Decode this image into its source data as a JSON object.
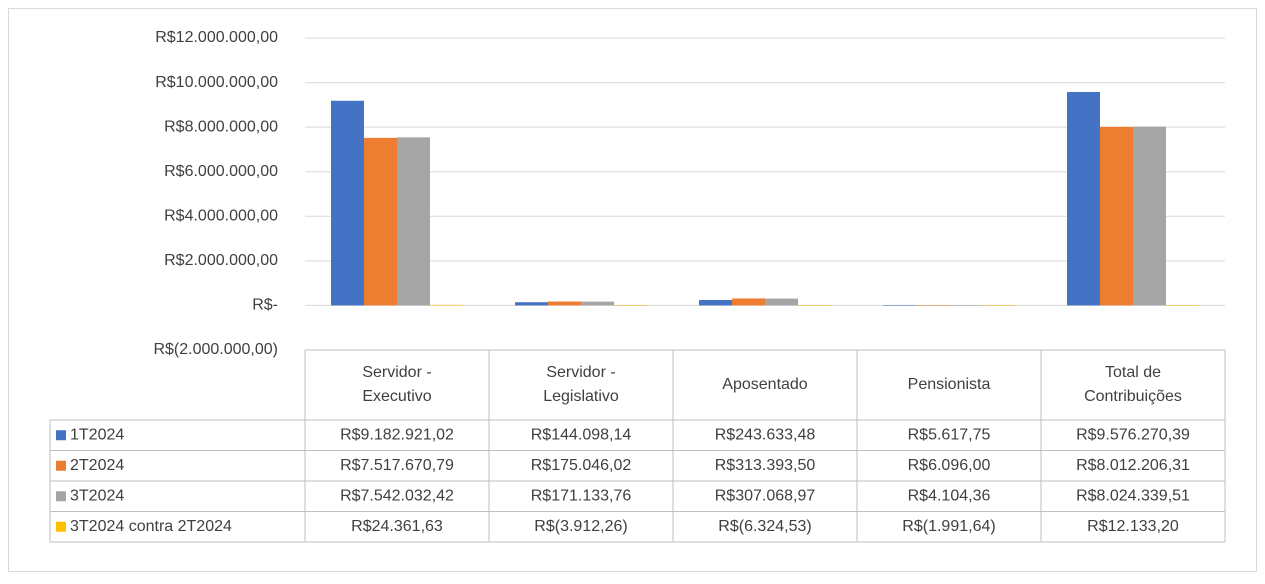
{
  "chart_data": {
    "type": "bar",
    "categories": [
      "Servidor - Executivo",
      "Servidor - Legislativo",
      "Aposentado",
      "Pensionista",
      "Total de Contribuições"
    ],
    "series": [
      {
        "name": "1T2024",
        "color": "#4472c4",
        "values": [
          9182921.02,
          144098.14,
          243633.48,
          5617.75,
          9576270.39
        ],
        "value_labels": [
          "R$9.182.921,02",
          "R$144.098,14",
          "R$243.633,48",
          "R$5.617,75",
          "R$9.576.270,39"
        ]
      },
      {
        "name": "2T2024",
        "color": "#ed7d31",
        "values": [
          7517670.79,
          175046.02,
          313393.5,
          6096.0,
          8012206.31
        ],
        "value_labels": [
          "R$7.517.670,79",
          "R$175.046,02",
          "R$313.393,50",
          "R$6.096,00",
          "R$8.012.206,31"
        ]
      },
      {
        "name": "3T2024",
        "color": "#a5a5a5",
        "values": [
          7542032.42,
          171133.76,
          307068.97,
          4104.36,
          8024339.51
        ],
        "value_labels": [
          "R$7.542.032,42",
          "R$171.133,76",
          "R$307.068,97",
          "R$4.104,36",
          "R$8.024.339,51"
        ]
      },
      {
        "name": "3T2024 contra 2T2024",
        "color": "#ffc000",
        "values": [
          24361.63,
          -3912.26,
          -6324.53,
          -1991.64,
          12133.2
        ],
        "value_labels": [
          "R$24.361,63",
          "R$(3.912,26)",
          "R$(6.324,53)",
          "R$(1.991,64)",
          "R$12.133,20"
        ]
      }
    ],
    "ylim": [
      -2000000,
      12000000
    ],
    "yticks": [
      {
        "value": -2000000,
        "label": "R$(2.000.000,00)"
      },
      {
        "value": 0,
        "label": "R$-"
      },
      {
        "value": 2000000,
        "label": "R$2.000.000,00"
      },
      {
        "value": 4000000,
        "label": "R$4.000.000,00"
      },
      {
        "value": 6000000,
        "label": "R$6.000.000,00"
      },
      {
        "value": 8000000,
        "label": "R$8.000.000,00"
      },
      {
        "value": 10000000,
        "label": "R$10.000.000,00"
      },
      {
        "value": 12000000,
        "label": "R$12.000.000,00"
      }
    ],
    "grid": true
  }
}
